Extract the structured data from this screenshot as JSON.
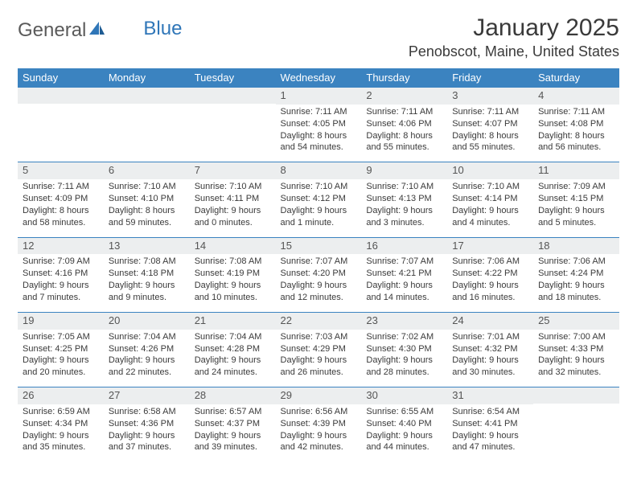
{
  "brand": {
    "general": "General",
    "blue": "Blue"
  },
  "title": "January 2025",
  "location": "Penobscot, Maine, United States",
  "colors": {
    "header_bg": "#3b83c0",
    "header_text": "#ffffff",
    "band_bg": "#eceeef",
    "rule": "#3b83c0",
    "text": "#3a3a3a",
    "brand_blue": "#2f76b8"
  },
  "weekdays": [
    "Sunday",
    "Monday",
    "Tuesday",
    "Wednesday",
    "Thursday",
    "Friday",
    "Saturday"
  ],
  "weeks": [
    [
      {
        "day": "",
        "sunrise": "",
        "sunset": "",
        "daylight": ""
      },
      {
        "day": "",
        "sunrise": "",
        "sunset": "",
        "daylight": ""
      },
      {
        "day": "",
        "sunrise": "",
        "sunset": "",
        "daylight": ""
      },
      {
        "day": "1",
        "sunrise": "Sunrise: 7:11 AM",
        "sunset": "Sunset: 4:05 PM",
        "daylight": "Daylight: 8 hours and 54 minutes."
      },
      {
        "day": "2",
        "sunrise": "Sunrise: 7:11 AM",
        "sunset": "Sunset: 4:06 PM",
        "daylight": "Daylight: 8 hours and 55 minutes."
      },
      {
        "day": "3",
        "sunrise": "Sunrise: 7:11 AM",
        "sunset": "Sunset: 4:07 PM",
        "daylight": "Daylight: 8 hours and 55 minutes."
      },
      {
        "day": "4",
        "sunrise": "Sunrise: 7:11 AM",
        "sunset": "Sunset: 4:08 PM",
        "daylight": "Daylight: 8 hours and 56 minutes."
      }
    ],
    [
      {
        "day": "5",
        "sunrise": "Sunrise: 7:11 AM",
        "sunset": "Sunset: 4:09 PM",
        "daylight": "Daylight: 8 hours and 58 minutes."
      },
      {
        "day": "6",
        "sunrise": "Sunrise: 7:10 AM",
        "sunset": "Sunset: 4:10 PM",
        "daylight": "Daylight: 8 hours and 59 minutes."
      },
      {
        "day": "7",
        "sunrise": "Sunrise: 7:10 AM",
        "sunset": "Sunset: 4:11 PM",
        "daylight": "Daylight: 9 hours and 0 minutes."
      },
      {
        "day": "8",
        "sunrise": "Sunrise: 7:10 AM",
        "sunset": "Sunset: 4:12 PM",
        "daylight": "Daylight: 9 hours and 1 minute."
      },
      {
        "day": "9",
        "sunrise": "Sunrise: 7:10 AM",
        "sunset": "Sunset: 4:13 PM",
        "daylight": "Daylight: 9 hours and 3 minutes."
      },
      {
        "day": "10",
        "sunrise": "Sunrise: 7:10 AM",
        "sunset": "Sunset: 4:14 PM",
        "daylight": "Daylight: 9 hours and 4 minutes."
      },
      {
        "day": "11",
        "sunrise": "Sunrise: 7:09 AM",
        "sunset": "Sunset: 4:15 PM",
        "daylight": "Daylight: 9 hours and 5 minutes."
      }
    ],
    [
      {
        "day": "12",
        "sunrise": "Sunrise: 7:09 AM",
        "sunset": "Sunset: 4:16 PM",
        "daylight": "Daylight: 9 hours and 7 minutes."
      },
      {
        "day": "13",
        "sunrise": "Sunrise: 7:08 AM",
        "sunset": "Sunset: 4:18 PM",
        "daylight": "Daylight: 9 hours and 9 minutes."
      },
      {
        "day": "14",
        "sunrise": "Sunrise: 7:08 AM",
        "sunset": "Sunset: 4:19 PM",
        "daylight": "Daylight: 9 hours and 10 minutes."
      },
      {
        "day": "15",
        "sunrise": "Sunrise: 7:07 AM",
        "sunset": "Sunset: 4:20 PM",
        "daylight": "Daylight: 9 hours and 12 minutes."
      },
      {
        "day": "16",
        "sunrise": "Sunrise: 7:07 AM",
        "sunset": "Sunset: 4:21 PM",
        "daylight": "Daylight: 9 hours and 14 minutes."
      },
      {
        "day": "17",
        "sunrise": "Sunrise: 7:06 AM",
        "sunset": "Sunset: 4:22 PM",
        "daylight": "Daylight: 9 hours and 16 minutes."
      },
      {
        "day": "18",
        "sunrise": "Sunrise: 7:06 AM",
        "sunset": "Sunset: 4:24 PM",
        "daylight": "Daylight: 9 hours and 18 minutes."
      }
    ],
    [
      {
        "day": "19",
        "sunrise": "Sunrise: 7:05 AM",
        "sunset": "Sunset: 4:25 PM",
        "daylight": "Daylight: 9 hours and 20 minutes."
      },
      {
        "day": "20",
        "sunrise": "Sunrise: 7:04 AM",
        "sunset": "Sunset: 4:26 PM",
        "daylight": "Daylight: 9 hours and 22 minutes."
      },
      {
        "day": "21",
        "sunrise": "Sunrise: 7:04 AM",
        "sunset": "Sunset: 4:28 PM",
        "daylight": "Daylight: 9 hours and 24 minutes."
      },
      {
        "day": "22",
        "sunrise": "Sunrise: 7:03 AM",
        "sunset": "Sunset: 4:29 PM",
        "daylight": "Daylight: 9 hours and 26 minutes."
      },
      {
        "day": "23",
        "sunrise": "Sunrise: 7:02 AM",
        "sunset": "Sunset: 4:30 PM",
        "daylight": "Daylight: 9 hours and 28 minutes."
      },
      {
        "day": "24",
        "sunrise": "Sunrise: 7:01 AM",
        "sunset": "Sunset: 4:32 PM",
        "daylight": "Daylight: 9 hours and 30 minutes."
      },
      {
        "day": "25",
        "sunrise": "Sunrise: 7:00 AM",
        "sunset": "Sunset: 4:33 PM",
        "daylight": "Daylight: 9 hours and 32 minutes."
      }
    ],
    [
      {
        "day": "26",
        "sunrise": "Sunrise: 6:59 AM",
        "sunset": "Sunset: 4:34 PM",
        "daylight": "Daylight: 9 hours and 35 minutes."
      },
      {
        "day": "27",
        "sunrise": "Sunrise: 6:58 AM",
        "sunset": "Sunset: 4:36 PM",
        "daylight": "Daylight: 9 hours and 37 minutes."
      },
      {
        "day": "28",
        "sunrise": "Sunrise: 6:57 AM",
        "sunset": "Sunset: 4:37 PM",
        "daylight": "Daylight: 9 hours and 39 minutes."
      },
      {
        "day": "29",
        "sunrise": "Sunrise: 6:56 AM",
        "sunset": "Sunset: 4:39 PM",
        "daylight": "Daylight: 9 hours and 42 minutes."
      },
      {
        "day": "30",
        "sunrise": "Sunrise: 6:55 AM",
        "sunset": "Sunset: 4:40 PM",
        "daylight": "Daylight: 9 hours and 44 minutes."
      },
      {
        "day": "31",
        "sunrise": "Sunrise: 6:54 AM",
        "sunset": "Sunset: 4:41 PM",
        "daylight": "Daylight: 9 hours and 47 minutes."
      },
      {
        "day": "",
        "sunrise": "",
        "sunset": "",
        "daylight": ""
      }
    ]
  ]
}
